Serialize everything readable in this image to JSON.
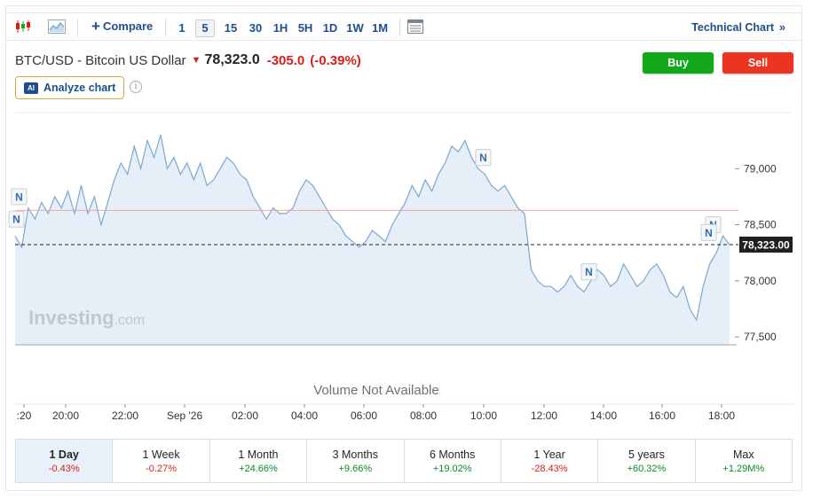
{
  "toolbar": {
    "compare_label": "Compare",
    "intervals": [
      "1",
      "5",
      "15",
      "30",
      "1H",
      "5H",
      "1D",
      "1W",
      "1M"
    ],
    "active_interval": "5",
    "technical_chart_label": "Technical Chart",
    "technical_chart_chevron": "»"
  },
  "instrument": {
    "name": "BTC/USD - Bitcoin US Dollar",
    "price": "78,323.0",
    "change": "-305.0",
    "change_pct": "(-0.39%)",
    "direction": "down"
  },
  "actions": {
    "buy_label": "Buy",
    "sell_label": "Sell",
    "analyze_label": "Analyze chart",
    "ai_badge": "AI"
  },
  "chart": {
    "watermark_main": "Investing",
    "watermark_suffix": ".com",
    "volume_note": "Volume Not Available",
    "current_price_label": "78,323.00",
    "news_marker": "N",
    "colors": {
      "line": "#7aa8d4",
      "fill": "#e6eff8",
      "prev_close": "#f2a5a0",
      "current_tag": "#1e2124"
    }
  },
  "chart_data": {
    "type": "area",
    "y_ticks": [
      "79,000",
      "78,500",
      "78,000",
      "77,500"
    ],
    "y_tick_values": [
      79000,
      78500,
      78000,
      77500
    ],
    "x_ticks": [
      ":20",
      "20:00",
      "22:00",
      "Sep '26",
      "02:00",
      "04:00",
      "06:00",
      "08:00",
      "10:00",
      "12:00",
      "14:00",
      "16:00",
      "18:00"
    ],
    "ylim": [
      77430,
      79500
    ],
    "previous_close": 78628,
    "current": 78323,
    "series": [
      {
        "values": [
          78400,
          78300,
          78650,
          78550,
          78700,
          78600,
          78750,
          78650,
          78800,
          78600,
          78850,
          78600,
          78750,
          78500,
          78700,
          78900,
          79050,
          78950,
          79200,
          79000,
          79250,
          79100,
          79300,
          79000,
          79100,
          78950,
          79050,
          78900,
          79050,
          78850,
          78900,
          79000,
          79100,
          79050,
          78950,
          78900,
          78750,
          78650,
          78550,
          78650,
          78600,
          78600,
          78650,
          78800,
          78900,
          78850,
          78750,
          78650,
          78550,
          78500,
          78400,
          78350,
          78300,
          78350,
          78450,
          78400,
          78350,
          78500,
          78600,
          78700,
          78850,
          78750,
          78900,
          78800,
          78950,
          79050,
          79200,
          79150,
          79250,
          79100,
          79000,
          78950,
          78850,
          78800,
          78850,
          78750,
          78650,
          78600,
          78100,
          78000,
          77950,
          77950,
          77900,
          77950,
          78050,
          77950,
          77900,
          78000,
          78100,
          78050,
          77950,
          78000,
          78150,
          78050,
          77950,
          78000,
          78100,
          78150,
          78050,
          77900,
          77850,
          77950,
          77750,
          77650,
          77950,
          78150,
          78250,
          78400,
          78323
        ]
      }
    ],
    "news_marker_values": [
      78750,
      78550,
      79100,
      78080,
      78500,
      78430
    ]
  },
  "periods": [
    {
      "label": "1 Day",
      "change": "-0.43%",
      "sign": "neg",
      "active": true
    },
    {
      "label": "1 Week",
      "change": "-0.27%",
      "sign": "neg",
      "active": false
    },
    {
      "label": "1 Month",
      "change": "+24.66%",
      "sign": "pos",
      "active": false
    },
    {
      "label": "3 Months",
      "change": "+9.66%",
      "sign": "pos",
      "active": false
    },
    {
      "label": "6 Months",
      "change": "+19.02%",
      "sign": "pos",
      "active": false
    },
    {
      "label": "1 Year",
      "change": "-28.43%",
      "sign": "neg",
      "active": false
    },
    {
      "label": "5 years",
      "change": "+60.32%",
      "sign": "pos",
      "active": false
    },
    {
      "label": "Max",
      "change": "+1.29M%",
      "sign": "pos",
      "active": false
    }
  ]
}
